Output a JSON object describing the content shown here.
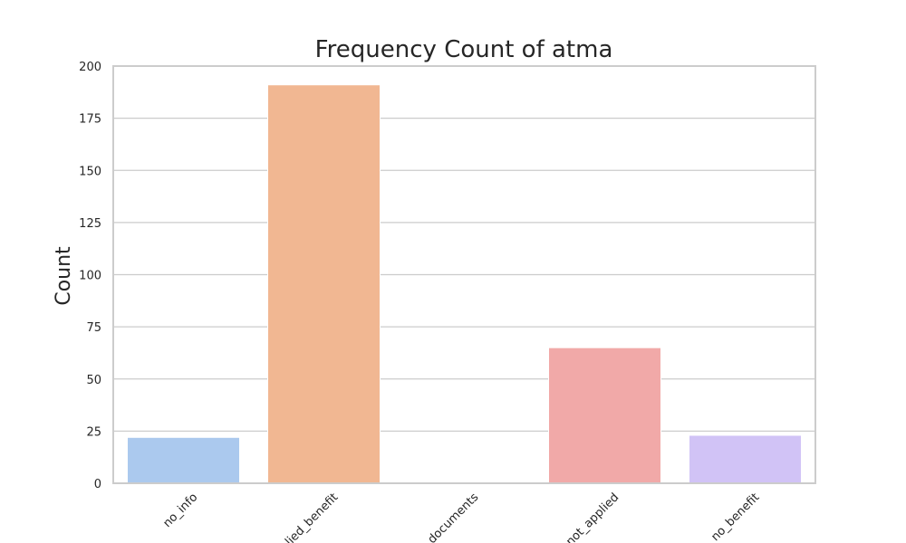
{
  "chart_data": {
    "type": "bar",
    "title": "Frequency Count of atma",
    "xlabel": "",
    "ylabel": "Count",
    "categories": [
      "no_info",
      "applied_benefit",
      "no_documents",
      "not_applied",
      "no_benefit"
    ],
    "values": [
      22,
      191,
      0,
      65,
      23
    ],
    "colors": [
      "#abc9ee",
      "#f1b792",
      "#8fd6a9",
      "#f1a9a8",
      "#d1c3f6"
    ],
    "ylim": [
      0,
      200
    ],
    "yticks": [
      0,
      25,
      50,
      75,
      100,
      125,
      150,
      175,
      200
    ],
    "grid": true,
    "legend": "none"
  }
}
